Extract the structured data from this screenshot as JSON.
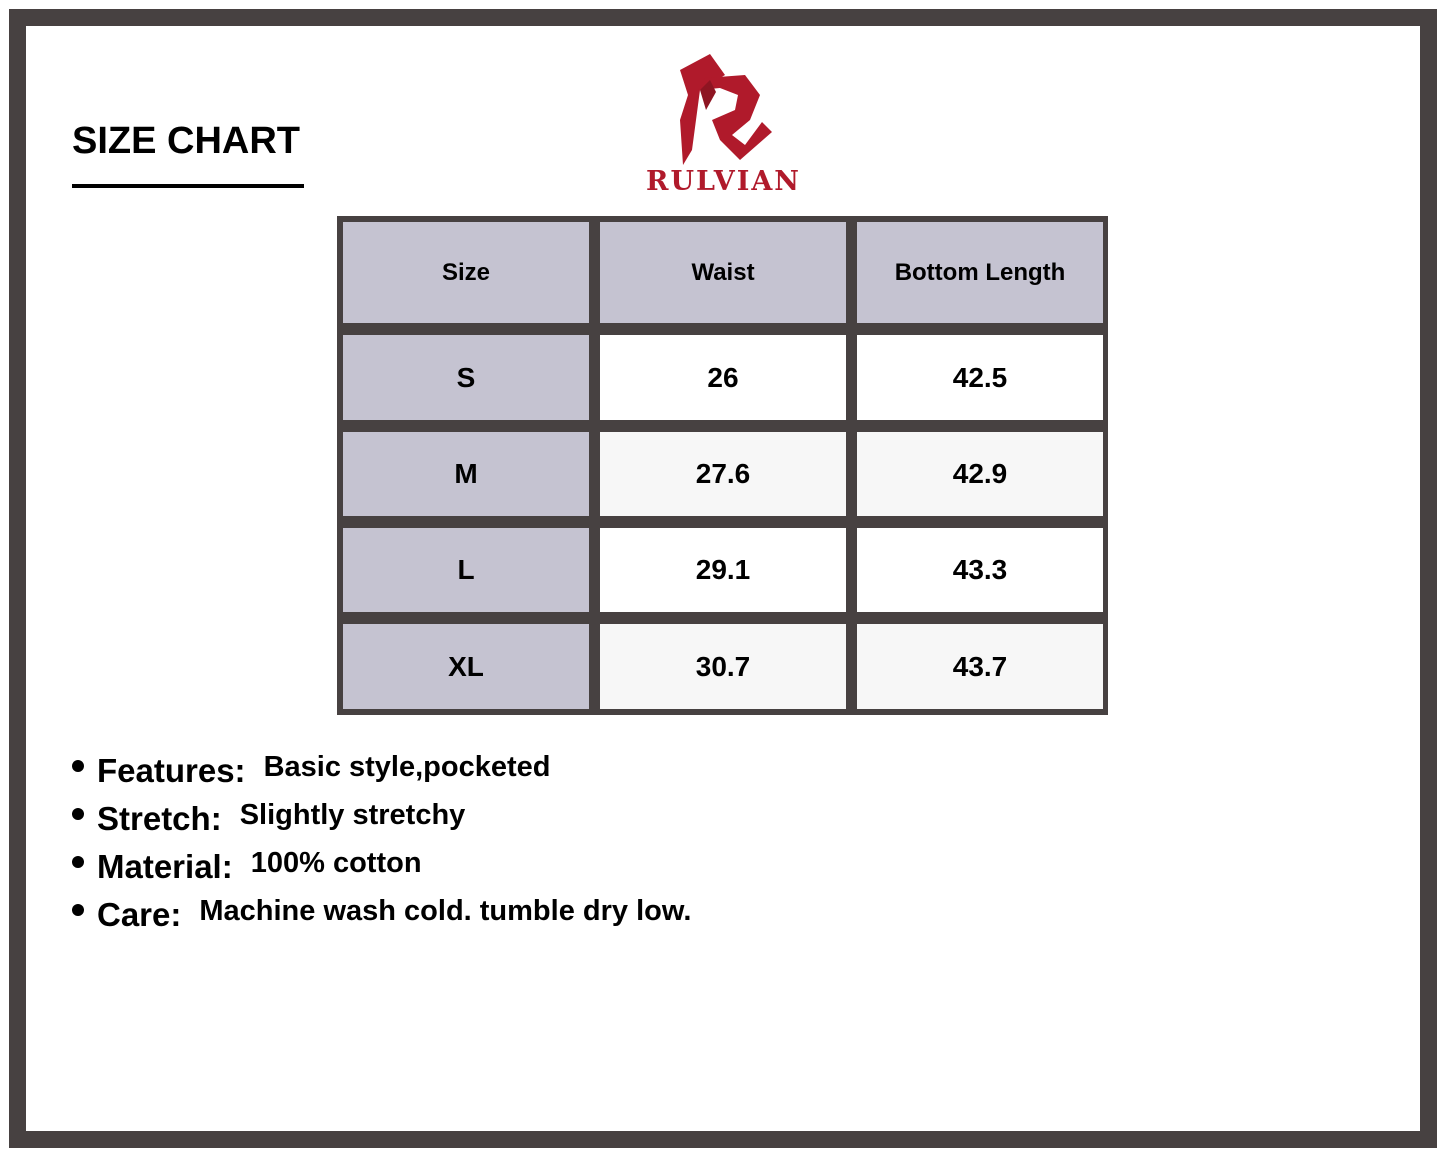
{
  "title": "SIZE CHART",
  "brand": {
    "name": "RULVIAN",
    "color": "#b01a2b"
  },
  "table": {
    "headers": [
      "Size",
      "Waist",
      "Bottom Length"
    ],
    "rows": [
      [
        "S",
        "26",
        "42.5"
      ],
      [
        "M",
        "27.6",
        "42.9"
      ],
      [
        "L",
        "29.1",
        "43.3"
      ],
      [
        "XL",
        "30.7",
        "43.7"
      ]
    ]
  },
  "details": [
    {
      "label": "Features:",
      "value": "Basic style,pocketed"
    },
    {
      "label": "Stretch:",
      "value": "Slightly stretchy"
    },
    {
      "label": "Material:",
      "value": "100% cotton"
    },
    {
      "label": "Care:",
      "value": "Machine wash cold. tumble dry low."
    }
  ]
}
